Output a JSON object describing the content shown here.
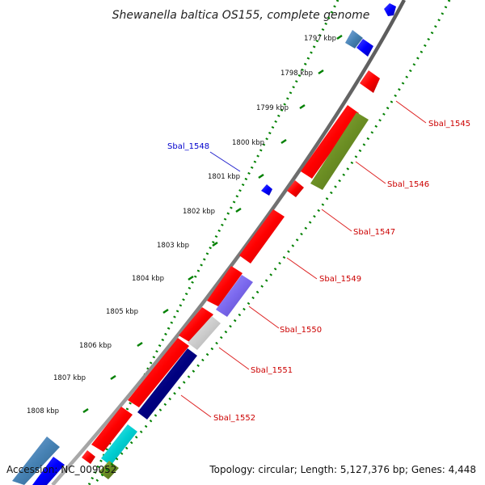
{
  "title": "Shewanella baltica OS155, complete genome",
  "footer": {
    "accession": "Accession: NC_009052",
    "summary": "Topology: circular; Length: 5,127,376 bp; Genes: 4,448"
  },
  "ticks": [
    "1797 kbp",
    "1798 kbp",
    "1799 kbp",
    "1800 kbp",
    "1801 kbp",
    "1802 kbp",
    "1803 kbp",
    "1804 kbp",
    "1805 kbp",
    "1806 kbp",
    "1807 kbp",
    "1808 kbp"
  ],
  "gene_labels": [
    {
      "text": "Sbal_1545",
      "color": "#cc0000"
    },
    {
      "text": "Sbal_1546",
      "color": "#cc0000"
    },
    {
      "text": "Sbal_1547",
      "color": "#cc0000"
    },
    {
      "text": "Sbal_1548",
      "color": "#0000cc"
    },
    {
      "text": "Sbal_1549",
      "color": "#cc0000"
    },
    {
      "text": "Sbal_1550",
      "color": "#cc0000"
    },
    {
      "text": "Sbal_1551",
      "color": "#cc0000"
    },
    {
      "text": "Sbal_1552",
      "color": "#cc0000"
    }
  ],
  "colors": {
    "forward_cds": "#ff0000",
    "reverse_cds": "#0000ff",
    "backbone": "#808080",
    "tick_green": "#008000",
    "olive": "#6b8e23",
    "slate": "#7b68ee",
    "navy": "#000080",
    "silver": "#c8c8c8",
    "cyan": "#00ced1",
    "steel": "#4682b4"
  }
}
